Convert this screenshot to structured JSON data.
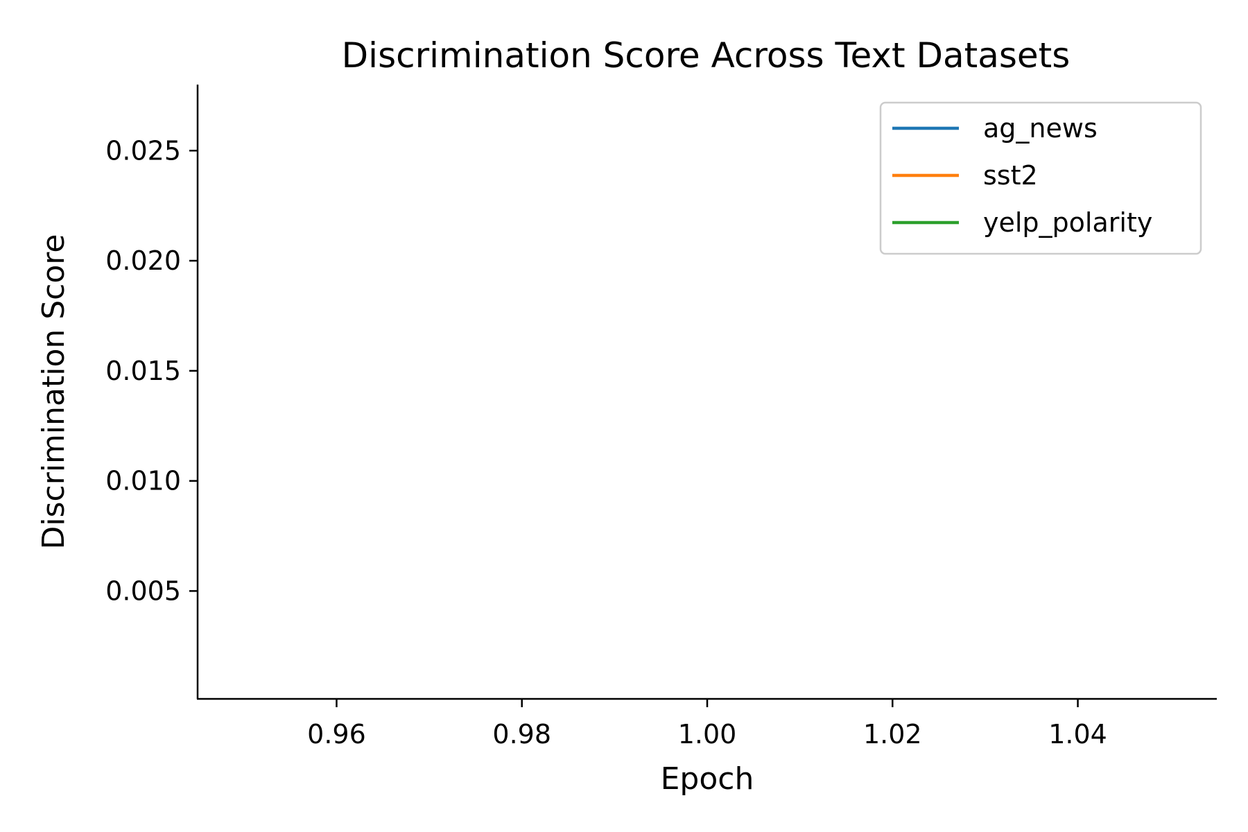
{
  "chart_data": {
    "type": "line",
    "title": "Discrimination Score Across Text Datasets",
    "xlabel": "Epoch",
    "ylabel": "Discrimination Score",
    "xlim": [
      0.945,
      1.055
    ],
    "ylim": [
      0.0001,
      0.028
    ],
    "x_ticks": [
      0.96,
      0.98,
      1.0,
      1.02,
      1.04
    ],
    "x_tick_labels": [
      "0.96",
      "0.98",
      "1.00",
      "1.02",
      "1.04"
    ],
    "y_ticks": [
      0.005,
      0.01,
      0.015,
      0.02,
      0.025
    ],
    "y_tick_labels": [
      "0.005",
      "0.010",
      "0.015",
      "0.020",
      "0.025"
    ],
    "grid": false,
    "legend_position": "top-right",
    "series": [
      {
        "name": "ag_news",
        "color": "#1f77b4",
        "x": [],
        "y": []
      },
      {
        "name": "sst2",
        "color": "#ff7f0e",
        "x": [],
        "y": []
      },
      {
        "name": "yelp_polarity",
        "color": "#2ca02c",
        "x": [],
        "y": []
      }
    ]
  }
}
